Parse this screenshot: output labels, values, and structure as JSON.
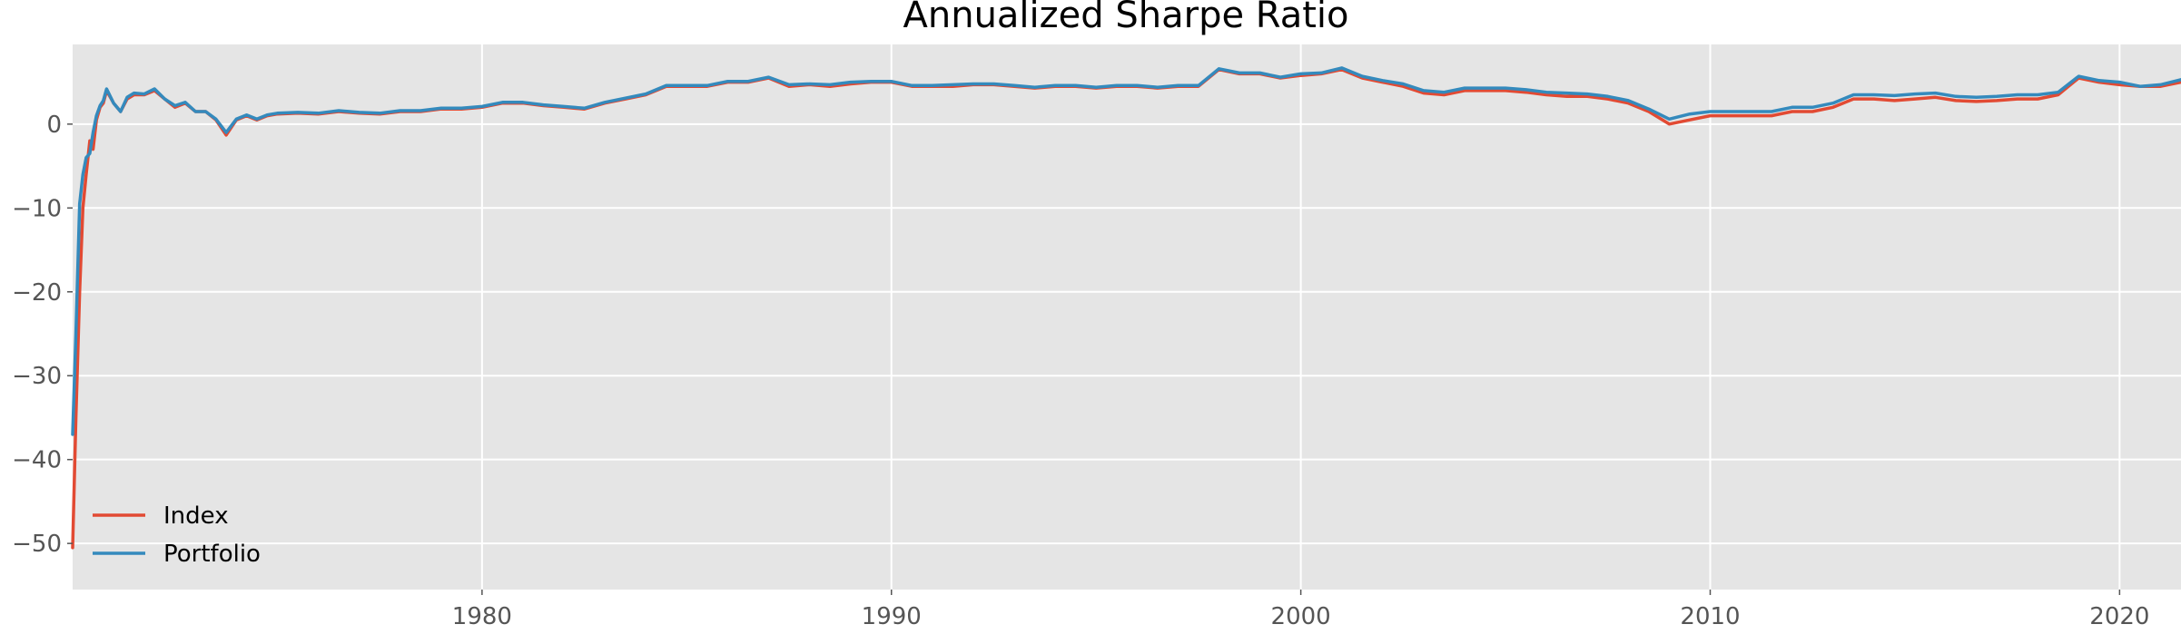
{
  "chart_data": {
    "type": "line",
    "title": "Annualized Sharpe Ratio",
    "xlabel": "",
    "ylabel": "",
    "xlim": [
      1970.0,
      2021.5
    ],
    "ylim": [
      -55.5,
      9.5
    ],
    "x_ticks": [
      1980,
      1990,
      2000,
      2010,
      2020
    ],
    "y_ticks": [
      0,
      -10,
      -20,
      -30,
      -40,
      -50
    ],
    "x_tick_labels": [
      "1980",
      "1990",
      "2000",
      "2010",
      "2020"
    ],
    "y_tick_labels": [
      "0",
      "−10",
      "−20",
      "−30",
      "−40",
      "−50"
    ],
    "grid": true,
    "legend_position": "lower-left",
    "colors": {
      "plot_background": "#e5e5e5",
      "grid": "#ffffff",
      "Index": "#E24A33",
      "Portfolio": "#348ABD"
    },
    "series": [
      {
        "name": "Index",
        "x": [
          1970.0,
          1970.08,
          1970.17,
          1970.25,
          1970.33,
          1970.42,
          1970.5,
          1970.58,
          1970.67,
          1970.75,
          1970.83,
          1971.0,
          1971.17,
          1971.33,
          1971.5,
          1971.75,
          1972.0,
          1972.25,
          1972.5,
          1972.75,
          1973.0,
          1973.25,
          1973.5,
          1973.75,
          1974.0,
          1974.25,
          1974.5,
          1974.75,
          1975.0,
          1975.5,
          1976.0,
          1976.5,
          1977.0,
          1977.5,
          1978.0,
          1978.5,
          1979.0,
          1979.5,
          1980.0,
          1980.5,
          1981.0,
          1981.5,
          1982.0,
          1982.5,
          1983.0,
          1983.5,
          1984.0,
          1984.5,
          1985.0,
          1985.5,
          1986.0,
          1986.5,
          1987.0,
          1987.5,
          1988.0,
          1988.5,
          1989.0,
          1989.5,
          1990.0,
          1990.5,
          1991.0,
          1991.5,
          1992.0,
          1992.5,
          1993.0,
          1993.5,
          1994.0,
          1994.5,
          1995.0,
          1995.5,
          1996.0,
          1996.5,
          1997.0,
          1997.5,
          1998.0,
          1998.5,
          1999.0,
          1999.5,
          2000.0,
          2000.5,
          2001.0,
          2001.5,
          2002.0,
          2002.5,
          2003.0,
          2003.5,
          2004.0,
          2004.5,
          2005.0,
          2005.5,
          2006.0,
          2006.5,
          2007.0,
          2007.5,
          2008.0,
          2008.5,
          2009.0,
          2009.5,
          2010.0,
          2010.5,
          2011.0,
          2011.5,
          2012.0,
          2012.5,
          2013.0,
          2013.5,
          2014.0,
          2014.5,
          2015.0,
          2015.5,
          2016.0,
          2016.5,
          2017.0,
          2017.5,
          2018.0,
          2018.5,
          2019.0,
          2019.5,
          2020.0,
          2020.5,
          2021.0,
          2021.5
        ],
        "values": [
          -50.5,
          -35.0,
          -20.0,
          -10.0,
          -6.0,
          -2.0,
          -3.0,
          0.5,
          2.0,
          2.5,
          4.0,
          2.5,
          1.5,
          3.0,
          3.5,
          3.5,
          4.0,
          3.0,
          2.0,
          2.5,
          1.5,
          1.5,
          0.5,
          -1.3,
          0.5,
          1.0,
          0.5,
          1.0,
          1.2,
          1.3,
          1.2,
          1.5,
          1.3,
          1.2,
          1.5,
          1.5,
          1.8,
          1.8,
          2.0,
          2.5,
          2.5,
          2.2,
          2.0,
          1.8,
          2.5,
          3.0,
          3.5,
          4.5,
          4.5,
          4.5,
          5.0,
          5.0,
          5.5,
          4.5,
          4.7,
          4.5,
          4.8,
          5.0,
          5.0,
          4.5,
          4.5,
          4.5,
          4.7,
          4.7,
          4.5,
          4.3,
          4.5,
          4.5,
          4.3,
          4.5,
          4.5,
          4.3,
          4.5,
          4.5,
          6.5,
          6.0,
          6.0,
          5.5,
          5.8,
          6.0,
          6.5,
          5.5,
          5.0,
          4.5,
          3.7,
          3.5,
          4.0,
          4.0,
          4.0,
          3.8,
          3.5,
          3.3,
          3.3,
          3.0,
          2.5,
          1.5,
          0.0,
          0.5,
          1.0,
          1.0,
          1.0,
          1.0,
          1.5,
          1.5,
          2.0,
          3.0,
          3.0,
          2.8,
          3.0,
          3.2,
          2.8,
          2.7,
          2.8,
          3.0,
          3.0,
          3.5,
          5.5,
          5.0,
          4.7,
          4.5,
          4.5,
          5.0
        ]
      },
      {
        "name": "Portfolio",
        "x": [
          1970.0,
          1970.08,
          1970.17,
          1970.25,
          1970.33,
          1970.42,
          1970.5,
          1970.58,
          1970.67,
          1970.75,
          1970.83,
          1971.0,
          1971.17,
          1971.33,
          1971.5,
          1971.75,
          1972.0,
          1972.25,
          1972.5,
          1972.75,
          1973.0,
          1973.25,
          1973.5,
          1973.75,
          1974.0,
          1974.25,
          1974.5,
          1974.75,
          1975.0,
          1975.5,
          1976.0,
          1976.5,
          1977.0,
          1977.5,
          1978.0,
          1978.5,
          1979.0,
          1979.5,
          1980.0,
          1980.5,
          1981.0,
          1981.5,
          1982.0,
          1982.5,
          1983.0,
          1983.5,
          1984.0,
          1984.5,
          1985.0,
          1985.5,
          1986.0,
          1986.5,
          1987.0,
          1987.5,
          1988.0,
          1988.5,
          1989.0,
          1989.5,
          1990.0,
          1990.5,
          1991.0,
          1991.5,
          1992.0,
          1992.5,
          1993.0,
          1993.5,
          1994.0,
          1994.5,
          1995.0,
          1995.5,
          1996.0,
          1996.5,
          1997.0,
          1997.5,
          1998.0,
          1998.5,
          1999.0,
          1999.5,
          2000.0,
          2000.5,
          2001.0,
          2001.5,
          2002.0,
          2002.5,
          2003.0,
          2003.5,
          2004.0,
          2004.5,
          2005.0,
          2005.5,
          2006.0,
          2006.5,
          2007.0,
          2007.5,
          2008.0,
          2008.5,
          2009.0,
          2009.5,
          2010.0,
          2010.5,
          2011.0,
          2011.5,
          2012.0,
          2012.5,
          2013.0,
          2013.5,
          2014.0,
          2014.5,
          2015.0,
          2015.5,
          2016.0,
          2016.5,
          2017.0,
          2017.5,
          2018.0,
          2018.5,
          2019.0,
          2019.5,
          2020.0,
          2020.5,
          2021.0,
          2021.5
        ],
        "values": [
          -37.0,
          -25.0,
          -9.5,
          -6.0,
          -4.0,
          -3.5,
          -1.0,
          1.0,
          2.2,
          2.8,
          4.2,
          2.5,
          1.5,
          3.2,
          3.7,
          3.6,
          4.2,
          3.0,
          2.2,
          2.6,
          1.5,
          1.5,
          0.6,
          -1.0,
          0.6,
          1.1,
          0.6,
          1.1,
          1.3,
          1.4,
          1.3,
          1.6,
          1.4,
          1.3,
          1.6,
          1.6,
          1.9,
          1.9,
          2.1,
          2.6,
          2.6,
          2.3,
          2.1,
          1.9,
          2.6,
          3.1,
          3.6,
          4.6,
          4.6,
          4.6,
          5.1,
          5.1,
          5.6,
          4.7,
          4.8,
          4.7,
          5.0,
          5.1,
          5.1,
          4.6,
          4.6,
          4.7,
          4.8,
          4.8,
          4.6,
          4.4,
          4.6,
          4.6,
          4.4,
          4.6,
          4.6,
          4.4,
          4.6,
          4.6,
          6.6,
          6.1,
          6.1,
          5.6,
          6.0,
          6.1,
          6.7,
          5.7,
          5.2,
          4.8,
          4.0,
          3.8,
          4.3,
          4.3,
          4.3,
          4.1,
          3.8,
          3.7,
          3.6,
          3.3,
          2.8,
          1.8,
          0.6,
          1.2,
          1.5,
          1.5,
          1.5,
          1.5,
          2.0,
          2.0,
          2.5,
          3.5,
          3.5,
          3.4,
          3.6,
          3.7,
          3.3,
          3.2,
          3.3,
          3.5,
          3.5,
          3.8,
          5.7,
          5.2,
          5.0,
          4.5,
          4.7,
          5.3
        ]
      }
    ]
  }
}
